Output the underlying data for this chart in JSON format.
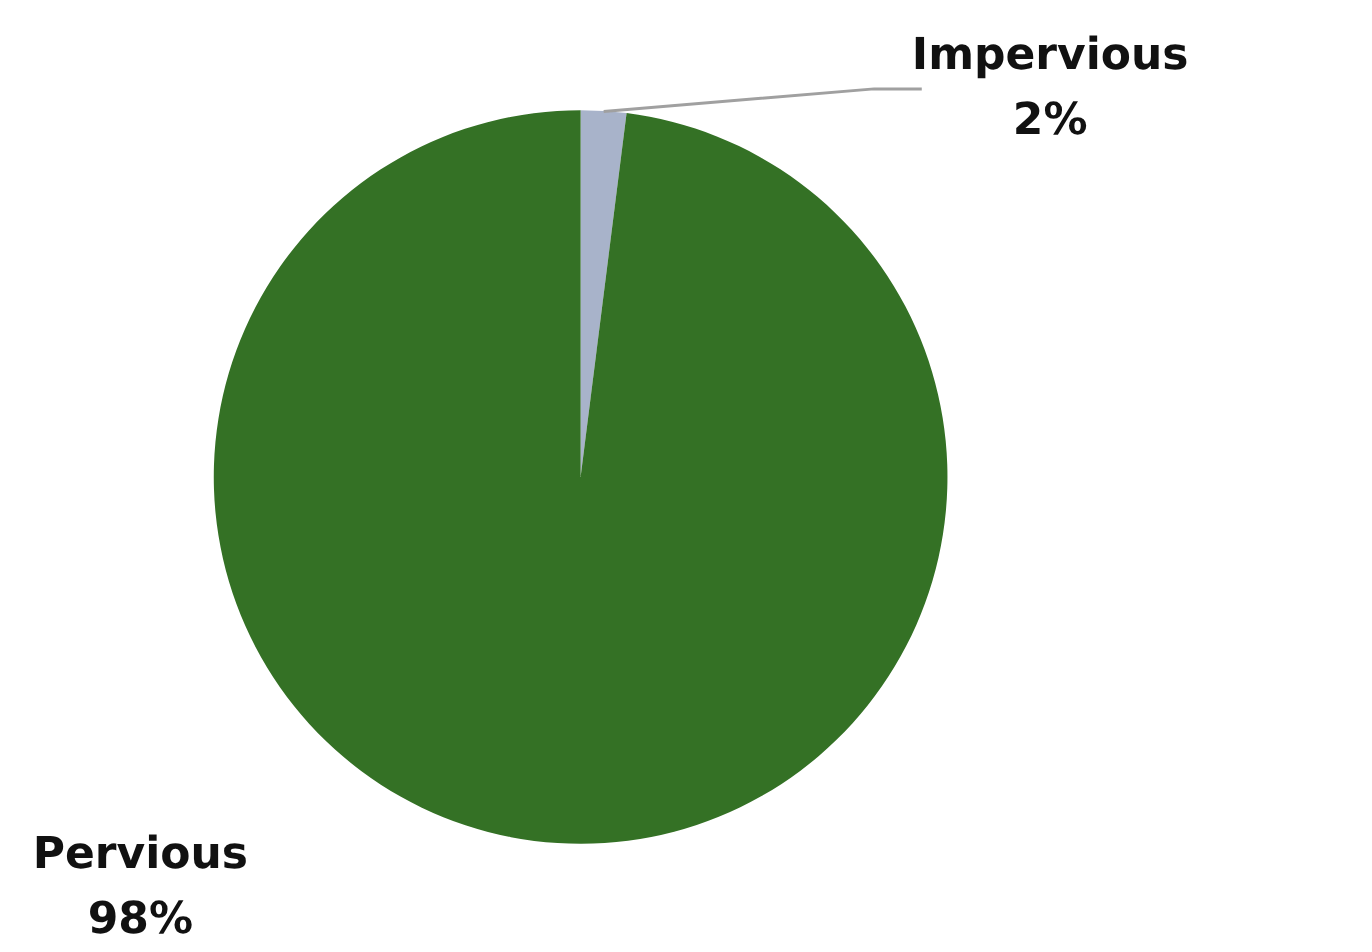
{
  "chart_data": {
    "type": "pie",
    "categories": [
      "Impervious",
      "Pervious"
    ],
    "values": [
      2,
      98
    ],
    "colors": [
      "#a8b3ca",
      "#347125"
    ],
    "value_labels": [
      "2%",
      "98%"
    ]
  }
}
